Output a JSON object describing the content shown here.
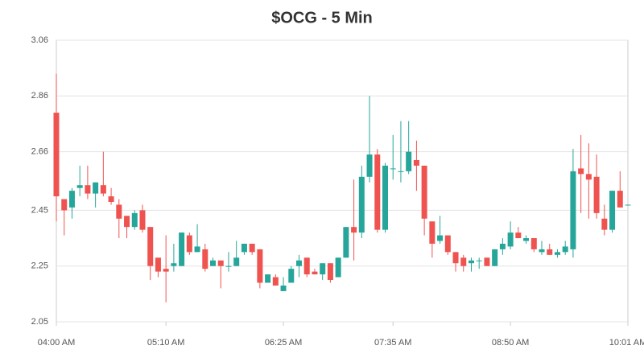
{
  "chart_data": {
    "type": "candlestick",
    "title": "$OCG - 5 Min",
    "up_color": "#26a69a",
    "down_color": "#ef5350",
    "grid": true,
    "ylim": [
      2.05,
      3.06
    ],
    "yticks": [
      2.05,
      2.25,
      2.45,
      2.66,
      2.86,
      3.06
    ],
    "xlim": [
      0,
      73
    ],
    "xticks": [
      {
        "value": 0,
        "label": "04:00 AM"
      },
      {
        "value": 14,
        "label": "05:10 AM"
      },
      {
        "value": 29,
        "label": "06:25 AM"
      },
      {
        "value": 43,
        "label": "07:35 AM"
      },
      {
        "value": 58,
        "label": "08:50 AM"
      },
      {
        "value": 73,
        "label": "10:01 AM"
      }
    ],
    "open": [
      2.8,
      2.49,
      2.46,
      2.53,
      2.54,
      2.51,
      2.54,
      2.5,
      2.47,
      2.43,
      2.39,
      2.45,
      2.39,
      2.28,
      2.24,
      2.25,
      2.25,
      2.36,
      2.3,
      2.31,
      2.25,
      2.27,
      2.25,
      2.25,
      2.3,
      2.33,
      2.31,
      2.19,
      2.21,
      2.16,
      2.19,
      2.25,
      2.28,
      2.23,
      2.22,
      2.26,
      2.21,
      2.28,
      2.39,
      2.37,
      2.57,
      2.65,
      2.38,
      2.6,
      2.59,
      2.59,
      2.63,
      2.61,
      2.41,
      2.34,
      2.36,
      2.3,
      2.28,
      2.26,
      2.27,
      2.28,
      2.25,
      2.31,
      2.32,
      2.37,
      2.34,
      2.35,
      2.3,
      2.31,
      2.29,
      2.3,
      2.31,
      2.6,
      2.58,
      2.57,
      2.42,
      2.38,
      2.52,
      2.47
    ],
    "high": [
      2.94,
      2.49,
      2.53,
      2.61,
      2.61,
      2.55,
      2.66,
      2.53,
      2.49,
      2.43,
      2.45,
      2.47,
      2.39,
      2.28,
      2.36,
      2.33,
      2.37,
      2.37,
      2.4,
      2.33,
      2.28,
      2.27,
      2.3,
      2.34,
      2.33,
      2.33,
      2.31,
      2.22,
      2.22,
      2.21,
      2.25,
      2.29,
      2.28,
      2.24,
      2.26,
      2.26,
      2.28,
      2.39,
      2.56,
      2.61,
      2.86,
      2.67,
      2.62,
      2.72,
      2.77,
      2.77,
      2.7,
      2.61,
      2.41,
      2.43,
      2.36,
      2.3,
      2.29,
      2.28,
      2.28,
      2.28,
      2.31,
      2.35,
      2.41,
      2.39,
      2.36,
      2.35,
      2.34,
      2.33,
      2.31,
      2.34,
      2.67,
      2.72,
      2.69,
      2.65,
      2.47,
      2.52,
      2.59,
      2.47
    ],
    "low": [
      2.41,
      2.36,
      2.42,
      2.5,
      2.49,
      2.46,
      2.5,
      2.47,
      2.35,
      2.35,
      2.38,
      2.37,
      2.2,
      2.21,
      2.12,
      2.23,
      2.25,
      2.29,
      2.3,
      2.23,
      2.25,
      2.17,
      2.23,
      2.25,
      2.29,
      2.29,
      2.17,
      2.19,
      2.18,
      2.16,
      2.19,
      2.21,
      2.21,
      2.22,
      2.2,
      2.19,
      2.21,
      2.28,
      2.27,
      2.35,
      2.55,
      2.37,
      2.37,
      2.56,
      2.55,
      2.58,
      2.52,
      2.36,
      2.28,
      2.33,
      2.29,
      2.23,
      2.23,
      2.23,
      2.24,
      2.25,
      2.25,
      2.29,
      2.31,
      2.35,
      2.33,
      2.3,
      2.29,
      2.29,
      2.28,
      2.29,
      2.28,
      2.44,
      2.42,
      2.42,
      2.36,
      2.37,
      2.46,
      2.47
    ],
    "close": [
      2.5,
      2.45,
      2.52,
      2.54,
      2.51,
      2.55,
      2.51,
      2.48,
      2.42,
      2.39,
      2.44,
      2.38,
      2.25,
      2.23,
      2.23,
      2.26,
      2.37,
      2.3,
      2.32,
      2.24,
      2.27,
      2.25,
      2.25,
      2.28,
      2.33,
      2.3,
      2.19,
      2.22,
      2.18,
      2.18,
      2.24,
      2.27,
      2.22,
      2.22,
      2.26,
      2.2,
      2.28,
      2.39,
      2.37,
      2.57,
      2.65,
      2.38,
      2.61,
      2.6,
      2.59,
      2.66,
      2.61,
      2.42,
      2.33,
      2.36,
      2.3,
      2.26,
      2.25,
      2.27,
      2.27,
      2.25,
      2.31,
      2.33,
      2.37,
      2.35,
      2.35,
      2.31,
      2.31,
      2.29,
      2.3,
      2.32,
      2.59,
      2.58,
      2.56,
      2.44,
      2.38,
      2.52,
      2.46,
      2.47
    ]
  }
}
